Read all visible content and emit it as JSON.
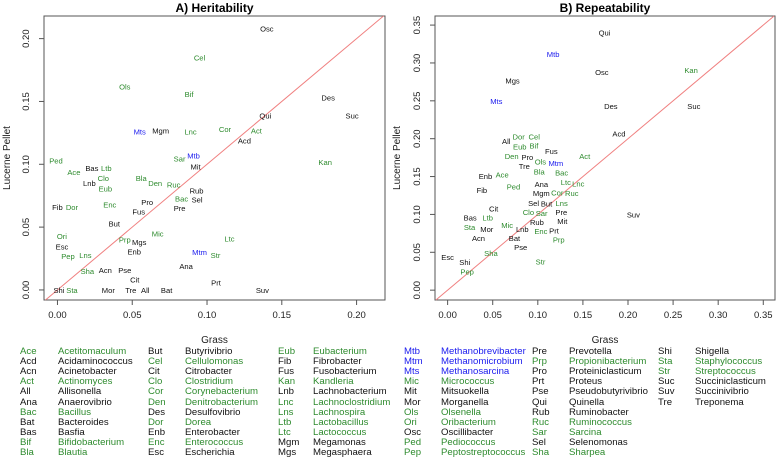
{
  "colors": {
    "green": "#2e8b2e",
    "blue": "#1a1aee",
    "black": "#111111",
    "diagonal": "#f08080"
  },
  "chart_data": [
    {
      "type": "scatter",
      "title": "A) Heritability",
      "xlabel": "Grass",
      "ylabel": "Lucerne Pellet",
      "xlim": [
        -0.009,
        0.219
      ],
      "ylim": [
        -0.008,
        0.218
      ],
      "xticks": [
        "0.00",
        "0.05",
        "0.10",
        "0.15",
        "0.20"
      ],
      "yticks": [
        "0.00",
        "0.05",
        "0.10",
        "0.15",
        "0.20"
      ],
      "reference_line": "y = x",
      "points": [
        {
          "label": "Osc",
          "x": 0.14,
          "y": 0.208
        },
        {
          "label": "Cel",
          "x": 0.095,
          "y": 0.185
        },
        {
          "label": "Ols",
          "x": 0.045,
          "y": 0.162
        },
        {
          "label": "Bif",
          "x": 0.088,
          "y": 0.156
        },
        {
          "label": "Des",
          "x": 0.181,
          "y": 0.153
        },
        {
          "label": "Suc",
          "x": 0.197,
          "y": 0.139
        },
        {
          "label": "Qui",
          "x": 0.139,
          "y": 0.139
        },
        {
          "label": "Mts",
          "x": 0.055,
          "y": 0.126
        },
        {
          "label": "Mgm",
          "x": 0.069,
          "y": 0.127
        },
        {
          "label": "Lnc",
          "x": 0.089,
          "y": 0.126
        },
        {
          "label": "Cor",
          "x": 0.112,
          "y": 0.128
        },
        {
          "label": "Act",
          "x": 0.133,
          "y": 0.127
        },
        {
          "label": "Acd",
          "x": 0.125,
          "y": 0.119
        },
        {
          "label": "Mtb",
          "x": 0.091,
          "y": 0.107
        },
        {
          "label": "Sar",
          "x": 0.087,
          "y": 0.106
        },
        {
          "label": "Mit",
          "x": 0.087,
          "y": 0.1
        },
        {
          "label": "Kan",
          "x": 0.179,
          "y": 0.102
        },
        {
          "label": "Ped",
          "x": -0.001,
          "y": 0.103
        },
        {
          "label": "Bas",
          "x": 0.023,
          "y": 0.097
        },
        {
          "label": "Ltb",
          "x": 0.03,
          "y": 0.097
        },
        {
          "label": "Ace",
          "x": 0.011,
          "y": 0.094
        },
        {
          "label": "Clo",
          "x": 0.028,
          "y": 0.09
        },
        {
          "label": "Lnb",
          "x": 0.024,
          "y": 0.086
        },
        {
          "label": "Eub",
          "x": 0.028,
          "y": 0.084
        },
        {
          "label": "Bla",
          "x": 0.056,
          "y": 0.089
        },
        {
          "label": "Den",
          "x": 0.06,
          "y": 0.085
        },
        {
          "label": "Ruc",
          "x": 0.075,
          "y": 0.084
        },
        {
          "label": "Rub",
          "x": 0.093,
          "y": 0.079
        },
        {
          "label": "Sel",
          "x": 0.092,
          "y": 0.079
        },
        {
          "label": "Bac",
          "x": 0.087,
          "y": 0.076
        },
        {
          "label": "Pro",
          "x": 0.06,
          "y": 0.07
        },
        {
          "label": "Pre",
          "x": 0.081,
          "y": 0.07
        },
        {
          "label": "Fus",
          "x": 0.053,
          "y": 0.065
        },
        {
          "label": "Fib",
          "x": 0.0,
          "y": 0.066
        },
        {
          "label": "Dor",
          "x": 0.001,
          "y": 0.066
        },
        {
          "label": "Enc",
          "x": 0.035,
          "y": 0.068
        },
        {
          "label": "But",
          "x": 0.038,
          "y": 0.053
        },
        {
          "label": "Mic",
          "x": 0.067,
          "y": 0.045
        },
        {
          "label": "Ltc",
          "x": 0.115,
          "y": 0.041
        },
        {
          "label": "Ori",
          "x": 0.003,
          "y": 0.043
        },
        {
          "label": "Esc",
          "x": -0.001,
          "y": 0.041
        },
        {
          "label": "Prp",
          "x": 0.045,
          "y": 0.04
        },
        {
          "label": "Mgs",
          "x": 0.052,
          "y": 0.038
        },
        {
          "label": "Enb",
          "x": 0.05,
          "y": 0.033
        },
        {
          "label": "Pep",
          "x": 0.003,
          "y": 0.03
        },
        {
          "label": "Lns",
          "x": 0.01,
          "y": 0.028
        },
        {
          "label": "Mtm",
          "x": 0.095,
          "y": 0.03
        },
        {
          "label": "Str",
          "x": 0.103,
          "y": 0.028
        },
        {
          "label": "Ana",
          "x": 0.086,
          "y": 0.019
        },
        {
          "label": "Sha",
          "x": 0.02,
          "y": 0.015
        },
        {
          "label": "Acn",
          "x": 0.032,
          "y": 0.016
        },
        {
          "label": "Pse",
          "x": 0.045,
          "y": 0.016
        },
        {
          "label": "Cit",
          "x": 0.049,
          "y": 0.009
        },
        {
          "label": "Prt",
          "x": 0.106,
          "y": 0.006
        },
        {
          "label": "Shi",
          "x": 0.001,
          "y": 0.0
        },
        {
          "label": "Sta",
          "x": 0.001,
          "y": 0.0
        },
        {
          "label": "Mor",
          "x": 0.034,
          "y": 0.0
        },
        {
          "label": "Tre",
          "x": 0.049,
          "y": 0.0
        },
        {
          "label": "All",
          "x": 0.05,
          "y": 0.0
        },
        {
          "label": "Bat",
          "x": 0.073,
          "y": 0.0
        },
        {
          "label": "Suv",
          "x": 0.137,
          "y": 0.0
        }
      ]
    },
    {
      "type": "scatter",
      "title": "B) Repeatability",
      "xlabel": "Grass",
      "ylabel": "Lucerne Pellet",
      "xlim": [
        -0.014,
        0.363
      ],
      "ylim": [
        -0.013,
        0.362
      ],
      "xticks": [
        "0.00",
        "0.05",
        "0.10",
        "0.15",
        "0.20",
        "0.25",
        "0.30",
        "0.35"
      ],
      "yticks": [
        "0.00",
        "0.05",
        "0.10",
        "0.15",
        "0.20",
        "0.25",
        "0.30",
        "0.35"
      ],
      "reference_line": "y = x",
      "points": [
        {
          "label": "Qui",
          "x": 0.174,
          "y": 0.34
        },
        {
          "label": "Mtb",
          "x": 0.117,
          "y": 0.312
        },
        {
          "label": "Osc",
          "x": 0.171,
          "y": 0.288
        },
        {
          "label": "Kan",
          "x": 0.27,
          "y": 0.291
        },
        {
          "label": "Mgs",
          "x": 0.072,
          "y": 0.277
        },
        {
          "label": "Mts",
          "x": 0.054,
          "y": 0.25
        },
        {
          "label": "Des",
          "x": 0.181,
          "y": 0.243
        },
        {
          "label": "Suc",
          "x": 0.273,
          "y": 0.243
        },
        {
          "label": "Acd",
          "x": 0.19,
          "y": 0.207
        },
        {
          "label": "Cel",
          "x": 0.096,
          "y": 0.203
        },
        {
          "label": "All",
          "x": 0.065,
          "y": 0.197
        },
        {
          "label": "Bif",
          "x": 0.089,
          "y": 0.196
        },
        {
          "label": "Eub",
          "x": 0.08,
          "y": 0.19
        },
        {
          "label": "Dor",
          "x": 0.081,
          "y": 0.191
        },
        {
          "label": "Fus",
          "x": 0.115,
          "y": 0.184
        },
        {
          "label": "Den",
          "x": 0.071,
          "y": 0.177
        },
        {
          "label": "Pro",
          "x": 0.084,
          "y": 0.176
        },
        {
          "label": "Ols",
          "x": 0.094,
          "y": 0.17
        },
        {
          "label": "Act",
          "x": 0.152,
          "y": 0.177
        },
        {
          "label": "Mtm",
          "x": 0.12,
          "y": 0.168
        },
        {
          "label": "Bac",
          "x": 0.122,
          "y": 0.162
        },
        {
          "label": "Tre",
          "x": 0.085,
          "y": 0.164
        },
        {
          "label": "Bla",
          "x": 0.095,
          "y": 0.162
        },
        {
          "label": "Ltc",
          "x": 0.13,
          "y": 0.151
        },
        {
          "label": "Enb",
          "x": 0.042,
          "y": 0.151
        },
        {
          "label": "Ace",
          "x": 0.056,
          "y": 0.153
        },
        {
          "label": "Lnc",
          "x": 0.136,
          "y": 0.141
        },
        {
          "label": "Ruc",
          "x": 0.131,
          "y": 0.139
        },
        {
          "label": "Cor",
          "x": 0.136,
          "y": 0.129
        },
        {
          "label": "Ped",
          "x": 0.073,
          "y": 0.137
        },
        {
          "label": "Fib",
          "x": 0.038,
          "y": 0.132
        },
        {
          "label": "Mgm",
          "x": 0.105,
          "y": 0.132
        },
        {
          "label": "Ana",
          "x": 0.115,
          "y": 0.132
        },
        {
          "label": "But",
          "x": 0.103,
          "y": 0.125
        },
        {
          "label": "Sel",
          "x": 0.092,
          "y": 0.118
        },
        {
          "label": "Sar",
          "x": 0.102,
          "y": 0.114
        },
        {
          "label": "Lns",
          "x": 0.112,
          "y": 0.115
        },
        {
          "label": "Pre",
          "x": 0.115,
          "y": 0.111
        },
        {
          "label": "Cit",
          "x": 0.051,
          "y": 0.108
        },
        {
          "label": "Clo",
          "x": 0.104,
          "y": 0.103
        },
        {
          "label": "Mit",
          "x": 0.125,
          "y": 0.103
        },
        {
          "label": "Suv",
          "x": 0.206,
          "y": 0.1
        },
        {
          "label": "Bas",
          "x": 0.025,
          "y": 0.096
        },
        {
          "label": "Ltb",
          "x": 0.03,
          "y": 0.096
        },
        {
          "label": "Sta",
          "x": 0.021,
          "y": 0.086
        },
        {
          "label": "Rub",
          "x": 0.099,
          "y": 0.09
        },
        {
          "label": "Mor",
          "x": 0.039,
          "y": 0.081
        },
        {
          "label": "Mic",
          "x": 0.066,
          "y": 0.086
        },
        {
          "label": "Lnb",
          "x": 0.085,
          "y": 0.085
        },
        {
          "label": "Enc",
          "x": 0.089,
          "y": 0.078
        },
        {
          "label": "Bat",
          "x": 0.073,
          "y": 0.077
        },
        {
          "label": "Acn",
          "x": 0.032,
          "y": 0.073
        },
        {
          "label": "Prt",
          "x": 0.118,
          "y": 0.079
        },
        {
          "label": "Prp",
          "x": 0.121,
          "y": 0.071
        },
        {
          "label": "Pse",
          "x": 0.081,
          "y": 0.057
        },
        {
          "label": "Sha",
          "x": 0.048,
          "y": 0.049
        },
        {
          "label": "Esc",
          "x": 0.0,
          "y": 0.044
        },
        {
          "label": "Shi",
          "x": 0.019,
          "y": 0.037
        },
        {
          "label": "Pep",
          "x": 0.015,
          "y": 0.03
        },
        {
          "label": "Str",
          "x": 0.103,
          "y": 0.038
        }
      ]
    }
  ],
  "legend": [
    {
      "abbr": "Ace",
      "name": "Acetitomaculum",
      "group": "green"
    },
    {
      "abbr": "Acd",
      "name": "Acidaminococcus",
      "group": "black"
    },
    {
      "abbr": "Acn",
      "name": "Acinetobacter",
      "group": "black"
    },
    {
      "abbr": "Act",
      "name": "Actinomyces",
      "group": "green"
    },
    {
      "abbr": "All",
      "name": "Allisonella",
      "group": "black"
    },
    {
      "abbr": "Ana",
      "name": "Anaerovibrio",
      "group": "black"
    },
    {
      "abbr": "Bac",
      "name": "Bacillus",
      "group": "green"
    },
    {
      "abbr": "Bat",
      "name": "Bacteroides",
      "group": "black"
    },
    {
      "abbr": "Bas",
      "name": "Basfia",
      "group": "black"
    },
    {
      "abbr": "Bif",
      "name": "Bifidobacterium",
      "group": "green"
    },
    {
      "abbr": "Bla",
      "name": "Blautia",
      "group": "green"
    },
    {
      "abbr": "But",
      "name": "Butyrivibrio",
      "group": "black"
    },
    {
      "abbr": "Cel",
      "name": "Cellulomonas",
      "group": "green"
    },
    {
      "abbr": "Cit",
      "name": "Citrobacter",
      "group": "black"
    },
    {
      "abbr": "Clo",
      "name": "Clostridium",
      "group": "green"
    },
    {
      "abbr": "Cor",
      "name": "Corynebacterium",
      "group": "green"
    },
    {
      "abbr": "Den",
      "name": "Denitrobacterium",
      "group": "green"
    },
    {
      "abbr": "Des",
      "name": "Desulfovibrio",
      "group": "black"
    },
    {
      "abbr": "Dor",
      "name": "Dorea",
      "group": "green"
    },
    {
      "abbr": "Enb",
      "name": "Enterobacter",
      "group": "black"
    },
    {
      "abbr": "Enc",
      "name": "Enterococcus",
      "group": "green"
    },
    {
      "abbr": "Esc",
      "name": "Escherichia",
      "group": "black"
    },
    {
      "abbr": "Eub",
      "name": "Eubacterium",
      "group": "green"
    },
    {
      "abbr": "Fib",
      "name": "Fibrobacter",
      "group": "black"
    },
    {
      "abbr": "Fus",
      "name": "Fusobacterium",
      "group": "black"
    },
    {
      "abbr": "Kan",
      "name": "Kandleria",
      "group": "green"
    },
    {
      "abbr": "Lnb",
      "name": "Lachnobacterium",
      "group": "black"
    },
    {
      "abbr": "Lnc",
      "name": "Lachnoclostridium",
      "group": "green"
    },
    {
      "abbr": "Lns",
      "name": "Lachnospira",
      "group": "green"
    },
    {
      "abbr": "Ltb",
      "name": "Lactobacillus",
      "group": "green"
    },
    {
      "abbr": "Ltc",
      "name": "Lactococcus",
      "group": "green"
    },
    {
      "abbr": "Mgm",
      "name": "Megamonas",
      "group": "black"
    },
    {
      "abbr": "Mgs",
      "name": "Megasphaera",
      "group": "black"
    },
    {
      "abbr": "Mtb",
      "name": "Methanobrevibacter",
      "group": "blue"
    },
    {
      "abbr": "Mtm",
      "name": "Methanomicrobium",
      "group": "blue"
    },
    {
      "abbr": "Mts",
      "name": "Methanosarcina",
      "group": "blue"
    },
    {
      "abbr": "Mic",
      "name": "Micrococcus",
      "group": "green"
    },
    {
      "abbr": "Mit",
      "name": "Mitsuokella",
      "group": "black"
    },
    {
      "abbr": "Mor",
      "name": "Morganella",
      "group": "black"
    },
    {
      "abbr": "Ols",
      "name": "Olsenella",
      "group": "green"
    },
    {
      "abbr": "Ori",
      "name": "Oribacterium",
      "group": "green"
    },
    {
      "abbr": "Osc",
      "name": "Oscillibacter",
      "group": "black"
    },
    {
      "abbr": "Ped",
      "name": "Pediococcus",
      "group": "green"
    },
    {
      "abbr": "Pep",
      "name": "Peptostreptococcus",
      "group": "green"
    },
    {
      "abbr": "Pre",
      "name": "Prevotella",
      "group": "black"
    },
    {
      "abbr": "Prp",
      "name": "Propionibacterium",
      "group": "green"
    },
    {
      "abbr": "Pro",
      "name": "Proteiniclasticum",
      "group": "black"
    },
    {
      "abbr": "Prt",
      "name": "Proteus",
      "group": "black"
    },
    {
      "abbr": "Pse",
      "name": "Pseudobutyrivibrio",
      "group": "black"
    },
    {
      "abbr": "Qui",
      "name": "Quinella",
      "group": "black"
    },
    {
      "abbr": "Rub",
      "name": "Ruminobacter",
      "group": "black"
    },
    {
      "abbr": "Ruc",
      "name": "Ruminococcus",
      "group": "green"
    },
    {
      "abbr": "Sar",
      "name": "Sarcina",
      "group": "green"
    },
    {
      "abbr": "Sel",
      "name": "Selenomonas",
      "group": "black"
    },
    {
      "abbr": "Sha",
      "name": "Sharpea",
      "group": "green"
    },
    {
      "abbr": "Shi",
      "name": "Shigella",
      "group": "black"
    },
    {
      "abbr": "Sta",
      "name": "Staphylococcus",
      "group": "green"
    },
    {
      "abbr": "Str",
      "name": "Streptococcus",
      "group": "green"
    },
    {
      "abbr": "Suc",
      "name": "Succiniclasticum",
      "group": "black"
    },
    {
      "abbr": "Suv",
      "name": "Succinivibrio",
      "group": "black"
    },
    {
      "abbr": "Tre",
      "name": "Treponema",
      "group": "black"
    }
  ]
}
